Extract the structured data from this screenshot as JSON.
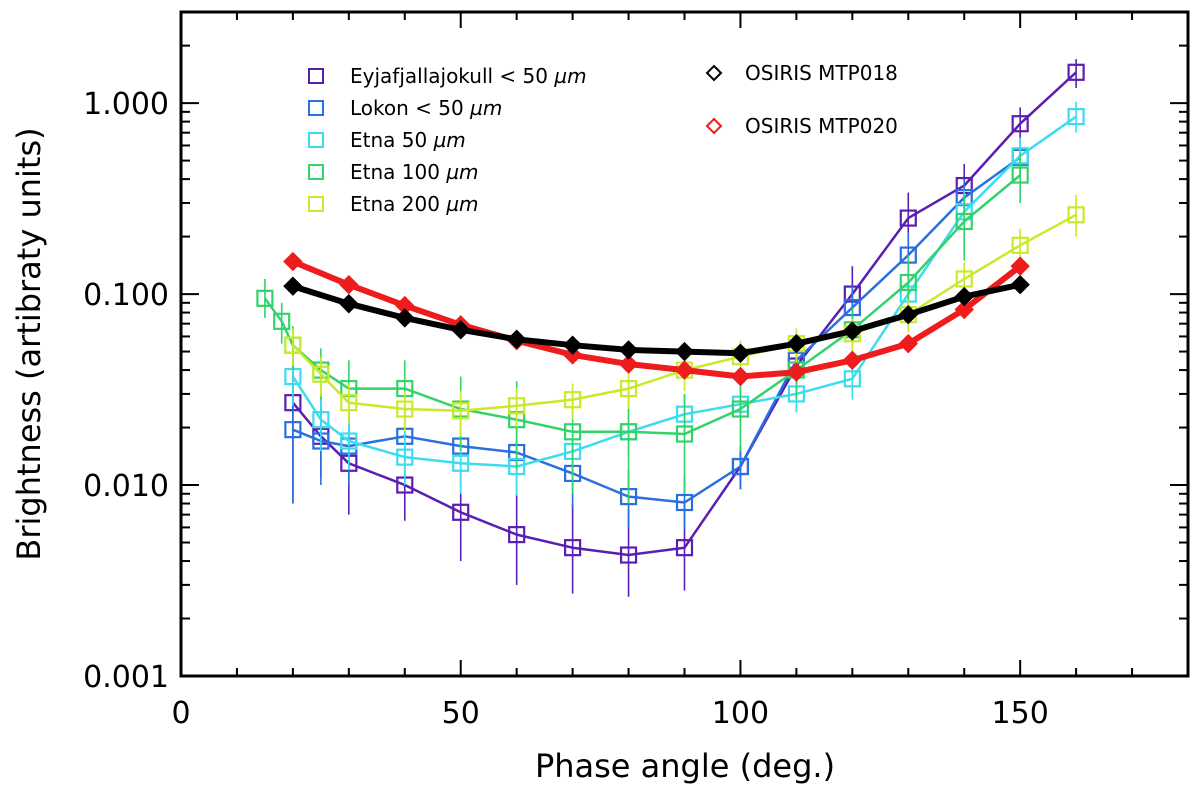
{
  "chart_data": {
    "type": "line",
    "xlabel": "Phase angle (deg.)",
    "ylabel": "Brightness (artibraty units)",
    "xlim": [
      0,
      180
    ],
    "ylim": [
      0.001,
      3.0
    ],
    "yscale": "log",
    "x_ticks": [
      0,
      50,
      100,
      150
    ],
    "x_tick_labels": [
      "0",
      "50",
      "100",
      "150"
    ],
    "y_ticks": [
      0.001,
      0.01,
      0.1,
      1.0
    ],
    "y_tick_labels": [
      "0.001",
      "0.010",
      "0.100",
      "1.000"
    ],
    "legend_position": "top-left",
    "series": [
      {
        "name": "Eyjafjallajokull < 50 µm",
        "label_main": "Eyjafjallajokull < 50 ",
        "label_unit": "µm",
        "color": "#5a1fb0",
        "marker": "square",
        "x": [
          20,
          25,
          30,
          40,
          50,
          60,
          70,
          80,
          90,
          100,
          110,
          120,
          130,
          140,
          150,
          160
        ],
        "y": [
          0.027,
          0.018,
          0.013,
          0.01,
          0.0072,
          0.0055,
          0.0047,
          0.0043,
          0.0047,
          0.0125,
          0.042,
          0.1,
          0.25,
          0.37,
          0.78,
          1.45
        ],
        "y_err_low": [
          0.008,
          0.011,
          0.007,
          0.0065,
          0.004,
          0.003,
          0.0027,
          0.0026,
          0.0028,
          0.0095,
          0.03,
          0.07,
          0.18,
          0.28,
          0.62,
          1.2
        ],
        "y_err_high": [
          0.06,
          0.03,
          0.022,
          0.016,
          0.012,
          0.009,
          0.008,
          0.0075,
          0.008,
          0.016,
          0.058,
          0.14,
          0.34,
          0.48,
          0.95,
          1.7
        ]
      },
      {
        "name": "Lokon < 50 µm",
        "label_main": "Lokon < 50 ",
        "label_unit": "µm",
        "color": "#2a6fe0",
        "marker": "square",
        "x": [
          20,
          25,
          30,
          40,
          50,
          60,
          70,
          80,
          90,
          100,
          110,
          120,
          130,
          140,
          150
        ],
        "y": [
          0.0195,
          0.017,
          0.016,
          0.018,
          0.016,
          0.0148,
          0.0115,
          0.0087,
          0.0081,
          0.0125,
          0.045,
          0.085,
          0.16,
          0.32,
          0.52
        ],
        "y_err_low": [
          0.008,
          0.01,
          0.01,
          0.011,
          0.01,
          0.009,
          0.0075,
          0.006,
          0.0058,
          0.0095,
          0.035,
          0.065,
          0.12,
          0.25,
          0.42
        ],
        "y_err_high": [
          0.03,
          0.025,
          0.024,
          0.026,
          0.024,
          0.022,
          0.017,
          0.012,
          0.011,
          0.016,
          0.058,
          0.11,
          0.21,
          0.4,
          0.65
        ]
      },
      {
        "name": "Etna 50 µm",
        "label_main": "Etna 50 ",
        "label_unit": "µm",
        "color": "#3cdcee",
        "marker": "square",
        "x": [
          20,
          25,
          30,
          40,
          50,
          60,
          70,
          80,
          90,
          100,
          110,
          120,
          130,
          140,
          150,
          160
        ],
        "y": [
          0.037,
          0.022,
          0.017,
          0.014,
          0.013,
          0.0125,
          0.015,
          0.019,
          0.0235,
          0.0265,
          0.03,
          0.036,
          0.1,
          0.27,
          0.53,
          0.85
        ],
        "y_err_low": [
          0.026,
          0.015,
          0.012,
          0.01,
          0.009,
          0.0088,
          0.011,
          0.014,
          0.018,
          0.021,
          0.024,
          0.028,
          0.075,
          0.2,
          0.42,
          0.7
        ],
        "y_err_high": [
          0.05,
          0.03,
          0.023,
          0.019,
          0.018,
          0.017,
          0.02,
          0.025,
          0.03,
          0.033,
          0.037,
          0.045,
          0.13,
          0.35,
          0.66,
          1.02
        ]
      },
      {
        "name": "Etna 100 µm",
        "label_main": "Etna 100 ",
        "label_unit": "µm",
        "color": "#33d26a",
        "marker": "square",
        "x": [
          15,
          18,
          20,
          25,
          30,
          40,
          50,
          60,
          70,
          80,
          90,
          100,
          110,
          120,
          130,
          140,
          150
        ],
        "y": [
          0.095,
          0.072,
          0.054,
          0.04,
          0.032,
          0.032,
          0.025,
          0.022,
          0.019,
          0.019,
          0.0185,
          0.025,
          0.04,
          0.065,
          0.115,
          0.24,
          0.42
        ],
        "y_err_low": [
          0.075,
          0.055,
          0.04,
          0.028,
          0.021,
          0.021,
          0.015,
          0.012,
          0.009,
          0.008,
          0.009,
          0.015,
          0.028,
          0.045,
          0.075,
          0.15,
          0.3
        ],
        "y_err_high": [
          0.12,
          0.09,
          0.068,
          0.052,
          0.045,
          0.045,
          0.037,
          0.035,
          0.031,
          0.031,
          0.03,
          0.037,
          0.053,
          0.085,
          0.16,
          0.33,
          0.55
        ]
      },
      {
        "name": "Etna 200 µm",
        "label_main": "Etna 200 ",
        "label_unit": "µm",
        "color": "#c8ea2a",
        "marker": "square",
        "x": [
          20,
          25,
          30,
          40,
          50,
          60,
          70,
          80,
          90,
          100,
          110,
          120,
          130,
          140,
          150,
          160
        ],
        "y": [
          0.054,
          0.038,
          0.027,
          0.025,
          0.0245,
          0.026,
          0.028,
          0.032,
          0.04,
          0.047,
          0.055,
          0.062,
          0.078,
          0.12,
          0.18,
          0.26
        ],
        "y_err_low": [
          0.042,
          0.029,
          0.021,
          0.019,
          0.018,
          0.02,
          0.022,
          0.025,
          0.031,
          0.037,
          0.044,
          0.05,
          0.063,
          0.096,
          0.144,
          0.2
        ],
        "y_err_high": [
          0.066,
          0.047,
          0.034,
          0.031,
          0.031,
          0.032,
          0.034,
          0.039,
          0.049,
          0.057,
          0.066,
          0.074,
          0.093,
          0.146,
          0.22,
          0.33
        ]
      },
      {
        "name": "OSIRIS MTP018",
        "label_main": "OSIRIS MTP018",
        "label_unit": "",
        "color": "#000000",
        "marker": "diamond",
        "x": [
          20,
          30,
          40,
          50,
          60,
          70,
          80,
          90,
          100,
          110,
          120,
          130,
          140,
          150
        ],
        "y": [
          0.11,
          0.089,
          0.075,
          0.065,
          0.058,
          0.054,
          0.051,
          0.05,
          0.049,
          0.055,
          0.064,
          0.078,
          0.097,
          0.112
        ]
      },
      {
        "name": "OSIRIS MTP020",
        "label_main": "OSIRIS MTP020",
        "label_unit": "",
        "color": "#ee1c1c",
        "marker": "diamond",
        "x": [
          20,
          30,
          40,
          50,
          60,
          70,
          80,
          90,
          100,
          110,
          120,
          130,
          140,
          150
        ],
        "y": [
          0.148,
          0.112,
          0.087,
          0.069,
          0.057,
          0.048,
          0.043,
          0.04,
          0.037,
          0.039,
          0.045,
          0.055,
          0.083,
          0.14
        ]
      }
    ]
  }
}
